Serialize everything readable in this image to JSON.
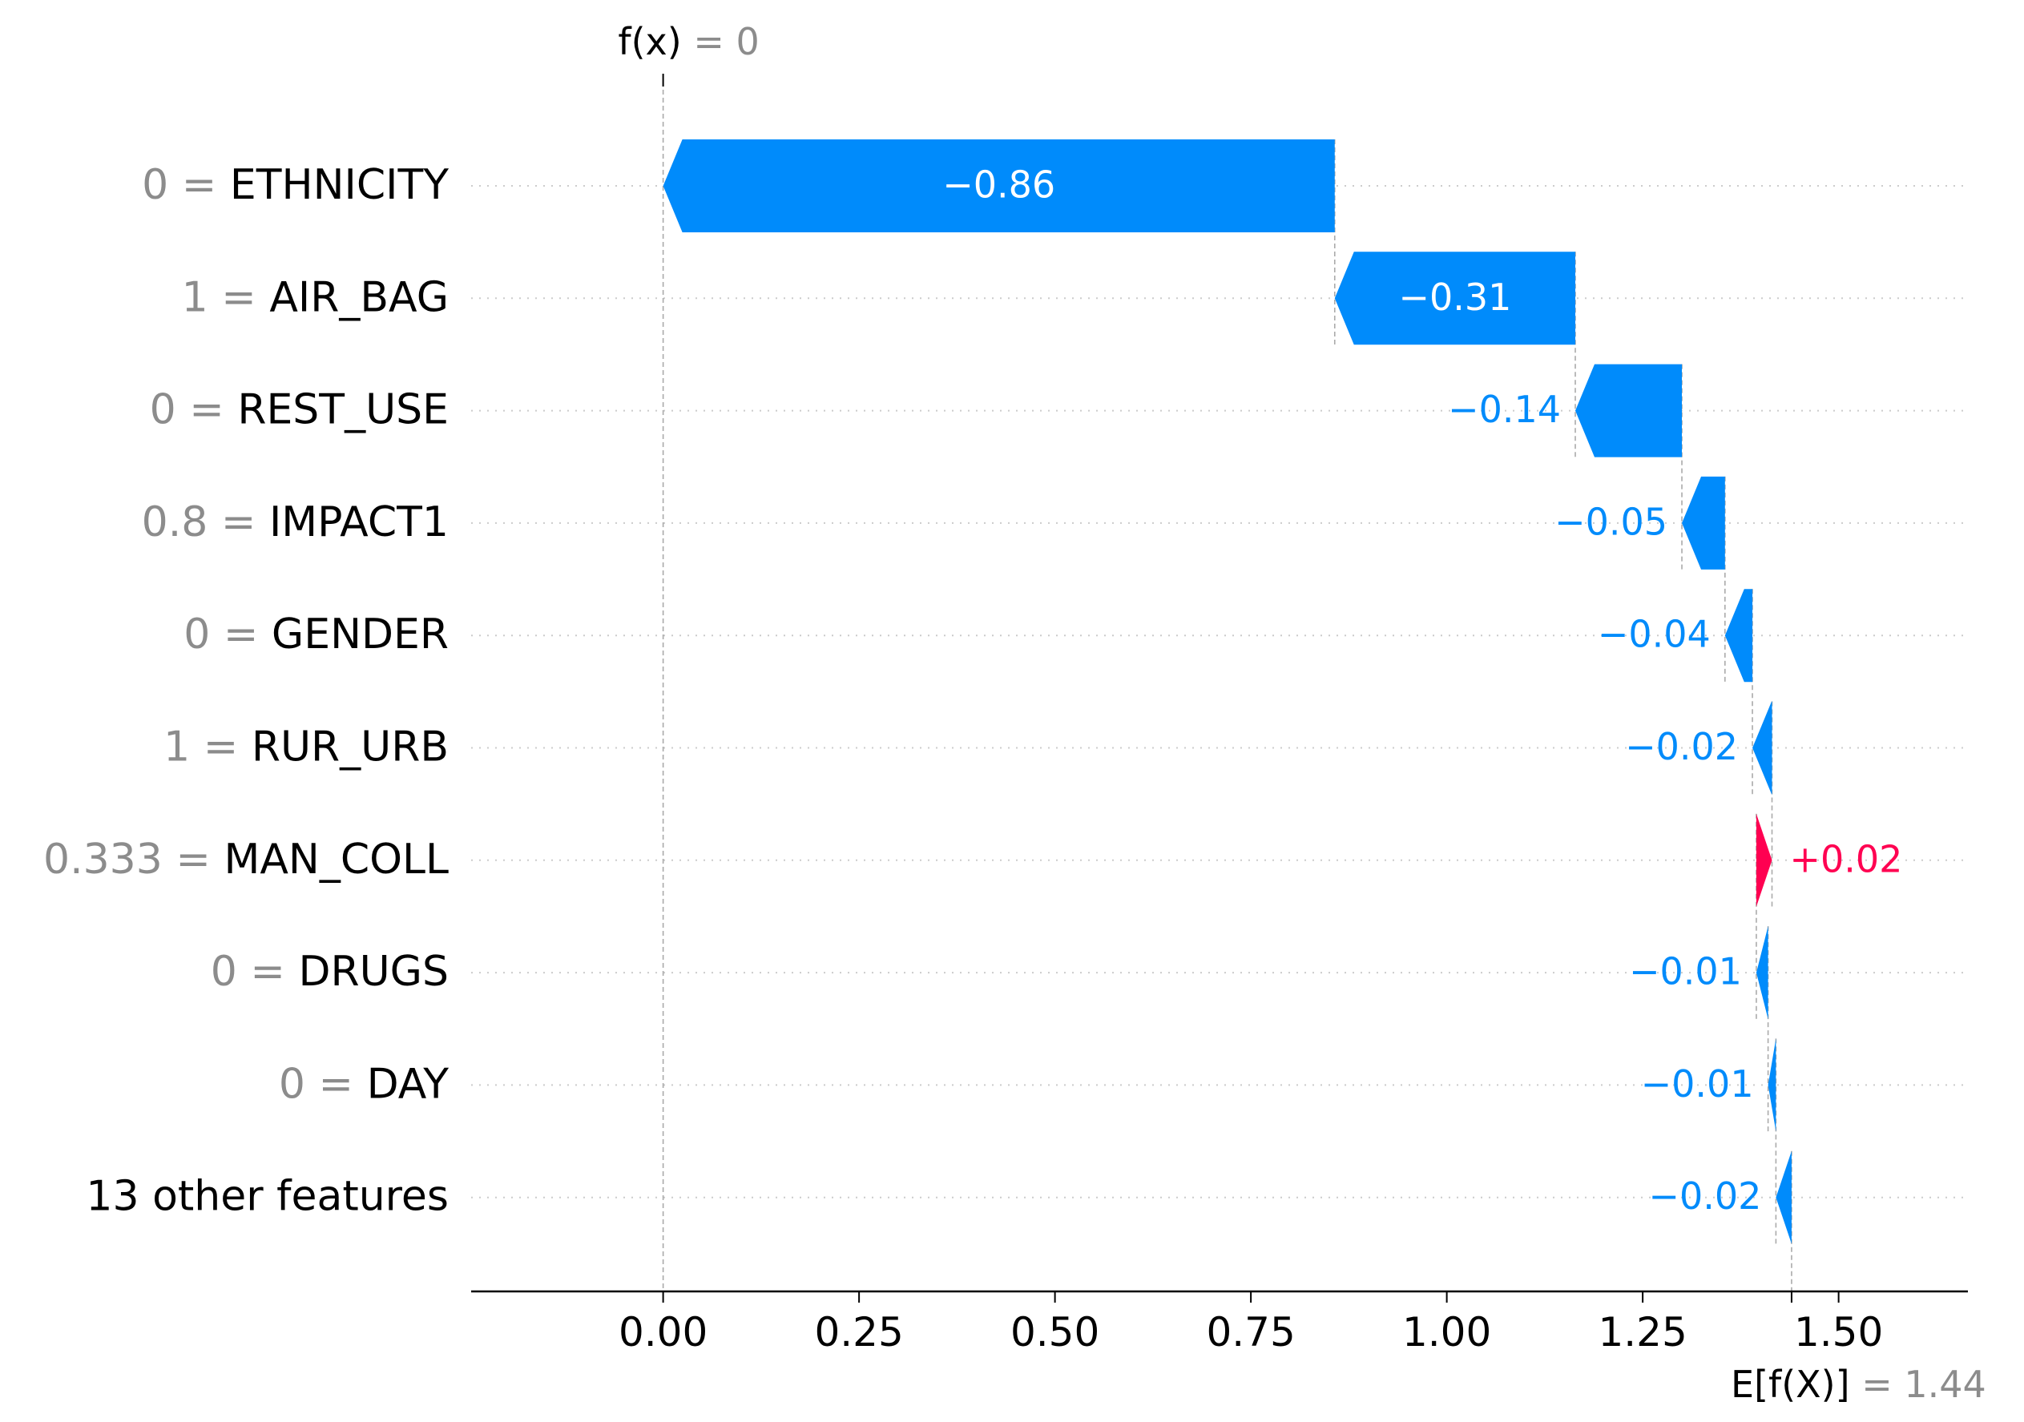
{
  "chart_data": {
    "type": "waterfall",
    "fx_label": "f(x)",
    "fx_value": "0",
    "efx_label": "E[f(X)]",
    "efx_value": "1.44",
    "base_value": 1.44,
    "output_value": 0,
    "xlim": [
      -0.245,
      1.665
    ],
    "x_ticks": [
      0.0,
      0.25,
      0.5,
      0.75,
      1.0,
      1.25,
      1.5
    ],
    "x_tick_labels": [
      "0.00",
      "0.25",
      "0.50",
      "0.75",
      "1.00",
      "1.25",
      "1.50"
    ],
    "features": [
      {
        "value": "0",
        "name": "ETHNICITY",
        "label": "−0.86",
        "start": 0.857,
        "end": 0.0
      },
      {
        "value": "1",
        "name": "AIR_BAG",
        "label": "−0.31",
        "start": 1.164,
        "end": 0.857
      },
      {
        "value": "0",
        "name": "REST_USE",
        "label": "−0.14",
        "start": 1.3,
        "end": 1.164
      },
      {
        "value": "0.8",
        "name": "IMPACT1",
        "label": "−0.05",
        "start": 1.355,
        "end": 1.3
      },
      {
        "value": "0",
        "name": "GENDER",
        "label": "−0.04",
        "start": 1.39,
        "end": 1.355
      },
      {
        "value": "1",
        "name": "RUR_URB",
        "label": "−0.02",
        "start": 1.415,
        "end": 1.39
      },
      {
        "value": "0.333",
        "name": "MAN_COLL",
        "label": "+0.02",
        "start": 1.395,
        "end": 1.415
      },
      {
        "value": "0",
        "name": "DRUGS",
        "label": "−0.01",
        "start": 1.41,
        "end": 1.395
      },
      {
        "value": "0",
        "name": "DAY",
        "label": "−0.01",
        "start": 1.42,
        "end": 1.41
      },
      {
        "value": "",
        "name": "13 other features",
        "label": "−0.02",
        "start": 1.44,
        "end": 1.42
      }
    ],
    "colors": {
      "negative": "#008bfb",
      "positive": "#ff0051",
      "muted_text": "#8c8c8c",
      "row_grid": "#cccccc",
      "vline": "#aaaaaa",
      "axis": "#000000"
    }
  }
}
